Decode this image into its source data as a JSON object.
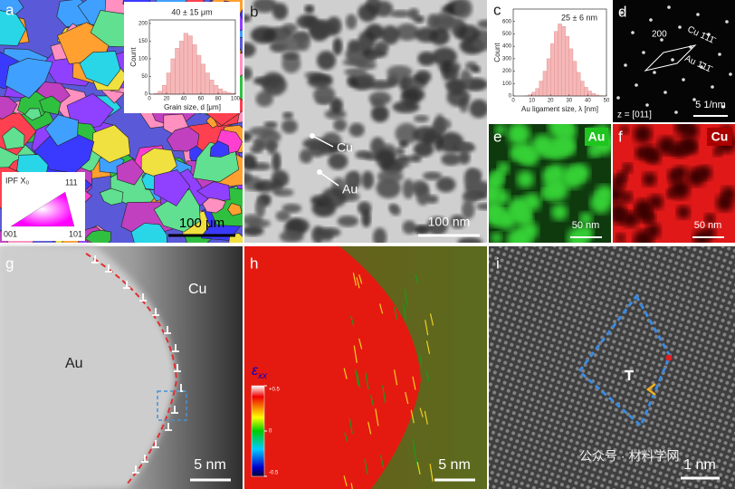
{
  "panels": {
    "a": {
      "label": "a",
      "inset_title": "40 ± 15 μm",
      "x_label": "Grain size, d [μm]",
      "y_label": "Count",
      "bins": [
        0,
        5,
        10,
        15,
        20,
        25,
        30,
        35,
        40,
        45,
        50,
        55,
        60,
        65,
        70,
        75,
        80,
        85,
        90,
        95,
        100
      ],
      "counts": [
        0,
        2,
        8,
        25,
        60,
        100,
        130,
        150,
        172,
        165,
        140,
        110,
        85,
        60,
        40,
        25,
        15,
        8,
        4,
        2
      ],
      "xlim": [
        0,
        100
      ],
      "ylim": [
        0,
        210
      ],
      "xticks": [
        0,
        20,
        40,
        60,
        80,
        100
      ],
      "yticks": [
        0,
        50,
        100,
        150,
        200
      ],
      "ipf_label": "IPF X₀",
      "ipf_111": "111",
      "ipf_001": "001",
      "ipf_101": "101",
      "scale_bar": "100 μm"
    },
    "b": {
      "label": "b",
      "cu": "Cu",
      "au": "Au",
      "scale_bar": "100 nm"
    },
    "c": {
      "label": "c",
      "inset_title": "25 ± 6 nm",
      "x_label": "Au ligament size, λ [nm]",
      "y_label": "Count",
      "bins": [
        0,
        2,
        4,
        6,
        8,
        10,
        12,
        14,
        16,
        18,
        20,
        22,
        24,
        26,
        28,
        30,
        32,
        34,
        36,
        38,
        40,
        42,
        44,
        46,
        48,
        50
      ],
      "counts": [
        0,
        0,
        0,
        2,
        10,
        30,
        60,
        120,
        200,
        300,
        420,
        520,
        580,
        560,
        480,
        380,
        280,
        190,
        120,
        70,
        40,
        20,
        8,
        3,
        1
      ],
      "xlim": [
        0,
        50
      ],
      "ylim": [
        0,
        700
      ],
      "xticks": [
        0,
        10,
        20,
        30,
        40,
        50
      ],
      "yticks": [
        0,
        100,
        200,
        300,
        400,
        500,
        600
      ]
    },
    "d": {
      "label": "d",
      "spot": "200",
      "cu": "Cu 1̄11̄",
      "au": "Au 1̄11̄",
      "zone": "z = [011]",
      "scale_bar": "5 1/nm"
    },
    "e": {
      "label": "e",
      "element": "Au",
      "scale_bar": "50 nm"
    },
    "f": {
      "label": "f",
      "element": "Cu",
      "scale_bar": "50 nm"
    },
    "g": {
      "label": "g",
      "cu": "Cu",
      "au": "Au",
      "scale_bar": "5 nm"
    },
    "h": {
      "label": "h",
      "strain_symbol": "ε",
      "strain_sub": "xx",
      "colorbar_lim": [
        -0.5,
        0.5
      ],
      "colorbar_ticks": [
        {
          "value": 0.5,
          "label": "+0.5"
        },
        0,
        {
          "value": -0.5,
          "label": "-0.5"
        }
      ],
      "scale_bar": "5 nm"
    },
    "i": {
      "label": "i",
      "scale_bar": "1 nm",
      "watermark": "公众号 · 材料学网"
    }
  }
}
